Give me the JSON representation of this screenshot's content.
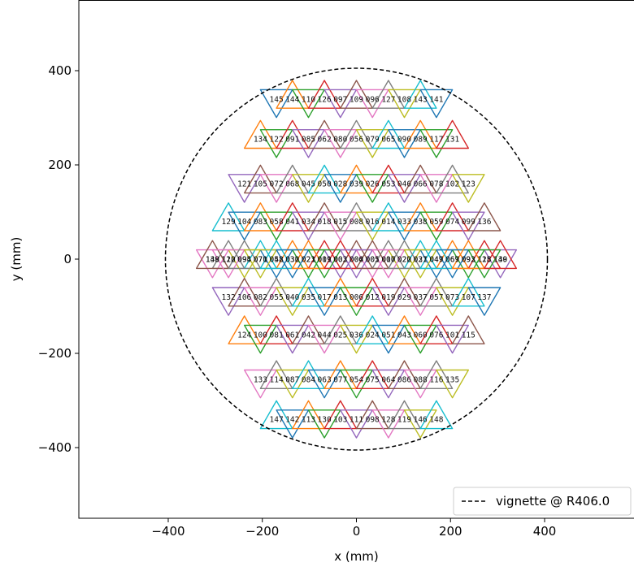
{
  "chart_data": {
    "type": "scatter",
    "title": "",
    "xlabel": "x (mm)",
    "ylabel": "y (mm)",
    "xlim": [
      -590,
      590
    ],
    "ylim": [
      -550,
      550
    ],
    "xticks": [
      -400,
      -200,
      0,
      200,
      400
    ],
    "xtick_labels": [
      "−400",
      "−200",
      "0",
      "200",
      "400"
    ],
    "yticks": [
      -400,
      -200,
      0,
      200,
      400
    ],
    "ytick_labels": [
      "−400",
      "−200",
      "0",
      "200",
      "400"
    ],
    "grid": false,
    "legend": {
      "placement": "lower-right",
      "entries": [
        {
          "label": "vignette @ R406.0",
          "style": "dashed",
          "color": "#000000"
        }
      ]
    },
    "vignette": {
      "radius": 406.0,
      "color": "#000000",
      "style": "dashed"
    },
    "tiling": {
      "shape": "equilateral triangles in a hexagonal array",
      "side": 68,
      "rows": [
        {
          "y": 340.0,
          "up_first": false,
          "labels": [
            "145",
            "144",
            "110",
            "126",
            "097",
            "109",
            "096",
            "127",
            "108",
            "143",
            "141"
          ]
        },
        {
          "y": 255.0,
          "up_first": true,
          "labels": [
            "134",
            "122",
            "091",
            "085",
            "062",
            "080",
            "056",
            "079",
            "065",
            "090",
            "089",
            "117",
            "131"
          ]
        },
        {
          "y": 160.0,
          "up_first": false,
          "labels": [
            "121",
            "105",
            "072",
            "068",
            "045",
            "050",
            "028",
            "039",
            "026",
            "053",
            "046",
            "066",
            "078",
            "102",
            "123"
          ]
        },
        {
          "y": 80.0,
          "up_first": true,
          "labels": [
            "129",
            "104",
            "083",
            "058",
            "041",
            "034",
            "018",
            "015",
            "008",
            "016",
            "014",
            "033",
            "038",
            "059",
            "074",
            "099",
            "136"
          ]
        },
        {
          "y": 0.0,
          "up_first": false,
          "labels": [
            "138",
            "112",
            "095",
            "070",
            "048",
            "030",
            "023",
            "009",
            "003",
            "004",
            "005",
            "007",
            "022",
            "031",
            "049",
            "067",
            "092",
            "125",
            "140"
          ]
        },
        {
          "y": 0.0,
          "up_first": true,
          "labels": [
            "149",
            "120",
            "094",
            "071",
            "052",
            "032",
            "021",
            "011",
            "002",
            "000",
            "001",
            "010",
            "020",
            "027",
            "047",
            "069",
            "093",
            "118",
            "139"
          ]
        },
        {
          "y": -80.0,
          "up_first": false,
          "labels": [
            "132",
            "106",
            "082",
            "055",
            "040",
            "035",
            "017",
            "013",
            "006",
            "012",
            "019",
            "029",
            "037",
            "057",
            "073",
            "107",
            "137"
          ]
        },
        {
          "y": -160.0,
          "up_first": true,
          "labels": [
            "124",
            "100",
            "081",
            "061",
            "042",
            "044",
            "025",
            "036",
            "024",
            "051",
            "043",
            "060",
            "076",
            "101",
            "115"
          ]
        },
        {
          "y": -255.0,
          "up_first": false,
          "labels": [
            "133",
            "114",
            "087",
            "084",
            "063",
            "077",
            "054",
            "075",
            "064",
            "086",
            "088",
            "116",
            "135"
          ]
        },
        {
          "y": -340.0,
          "up_first": true,
          "labels": [
            "147",
            "142",
            "113",
            "130",
            "103",
            "111",
            "098",
            "128",
            "119",
            "146",
            "148"
          ]
        }
      ],
      "colors": [
        "#1f77b4",
        "#ff7f0e",
        "#2ca02c",
        "#d62728",
        "#9467bd",
        "#8c564b",
        "#e377c2",
        "#7f7f7f",
        "#bcbd22",
        "#17becf"
      ]
    }
  }
}
